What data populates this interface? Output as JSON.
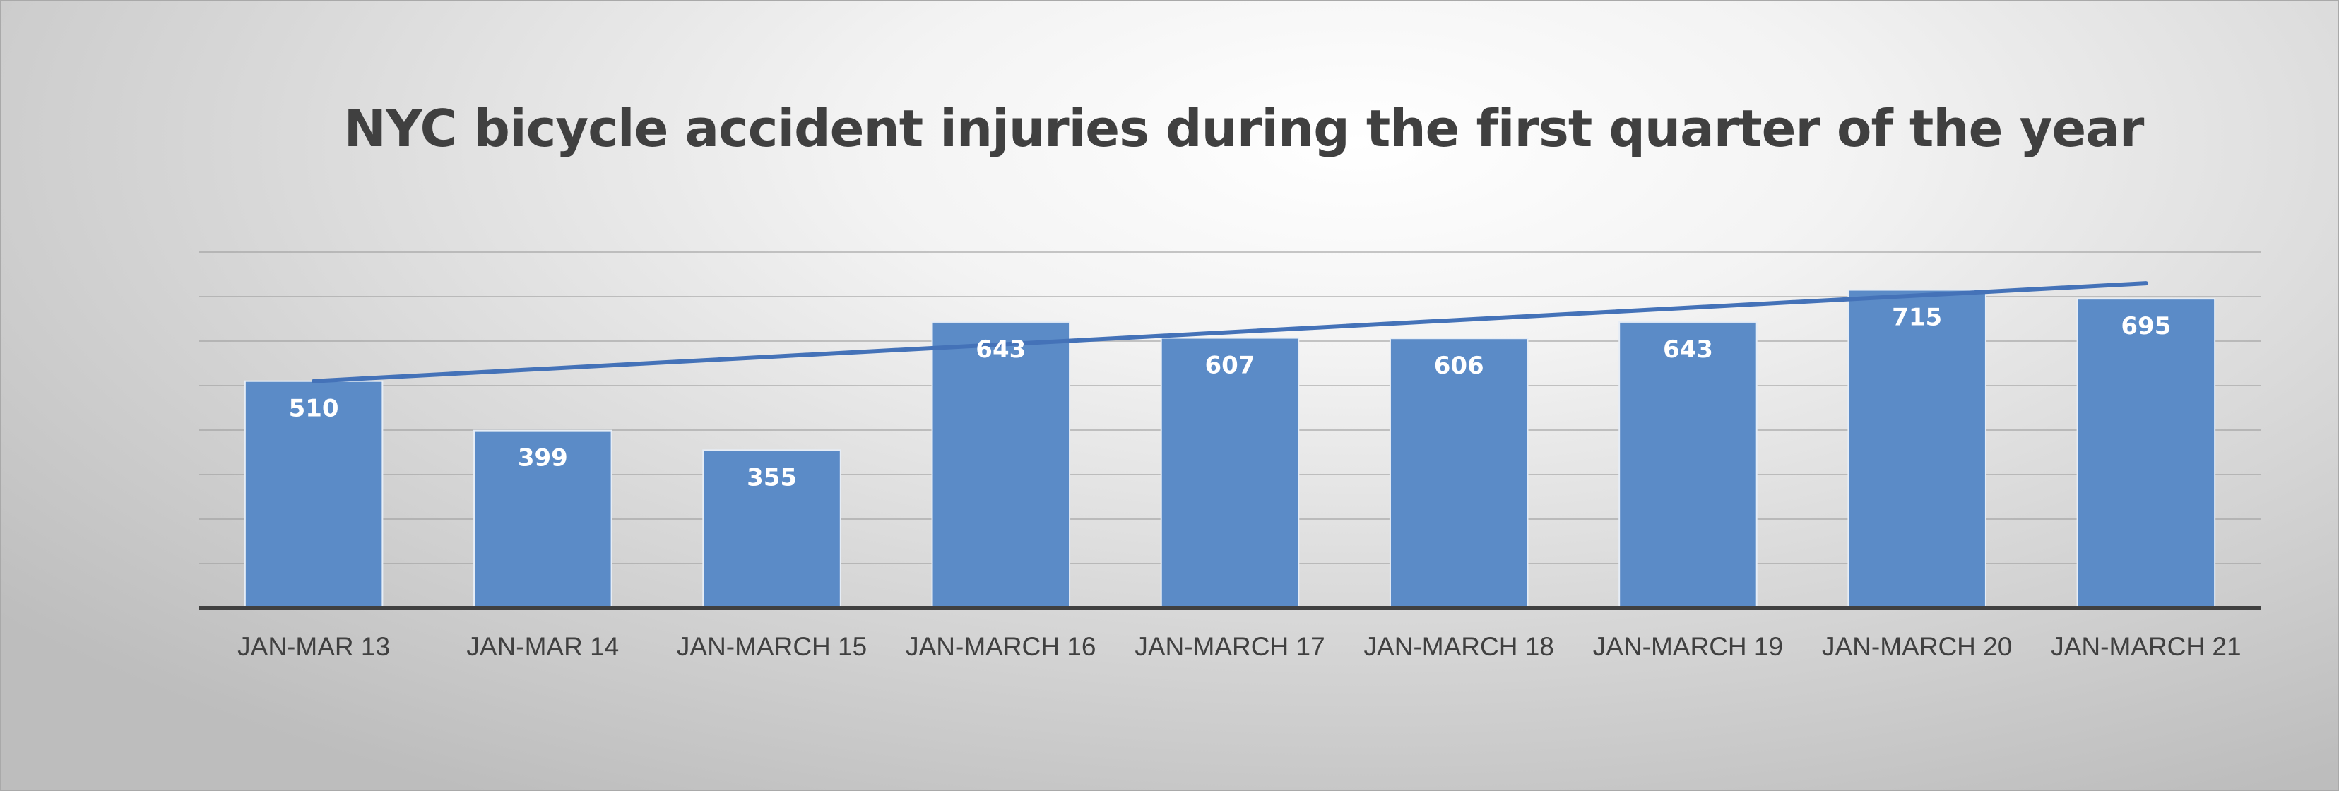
{
  "chart_data": {
    "type": "bar",
    "title": "NYC bicycle accident injuries during the first quarter of the year",
    "categories": [
      "JAN-MAR 13",
      "JAN-MAR 14",
      "JAN-MARCH 15",
      "JAN-MARCH 16",
      "JAN-MARCH 17",
      "JAN-MARCH 18",
      "JAN-MARCH 19",
      "JAN-MARCH 20",
      "JAN-MARCH 21"
    ],
    "values": [
      510,
      399,
      355,
      643,
      607,
      606,
      643,
      715,
      695
    ],
    "data_labels": [
      "510",
      "399",
      "355",
      "643",
      "607",
      "606",
      "643",
      "715",
      "695"
    ],
    "trendline": {
      "type": "linear",
      "start": 510,
      "end": 730
    },
    "ylim": [
      0,
      800
    ],
    "y_gridline_step": 100,
    "y_axis_labels_shown": false,
    "grid": true,
    "legend": "none",
    "colors": {
      "bar": "#5b8bc7",
      "trendline": "#4472b8",
      "grid": "#9a9a9a",
      "axis": "#404040",
      "title": "#404040"
    }
  }
}
